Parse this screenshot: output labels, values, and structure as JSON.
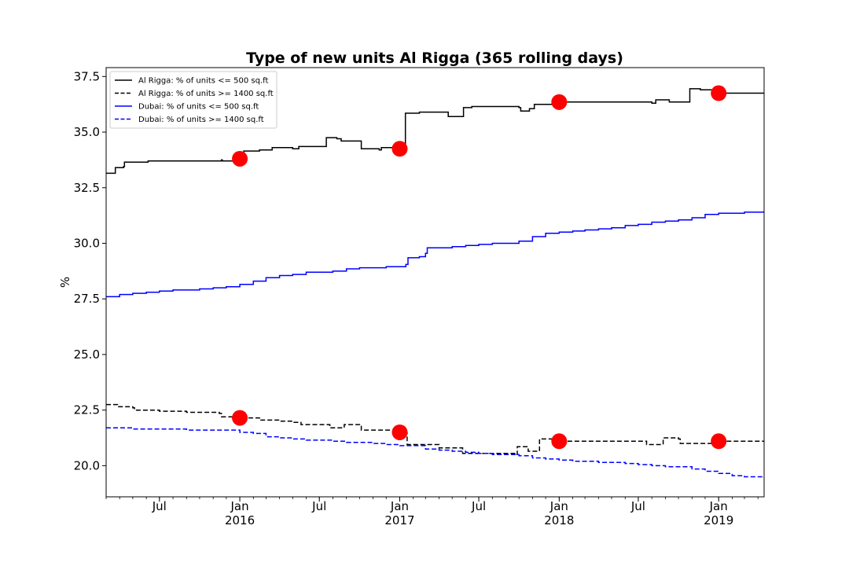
{
  "chart_data": {
    "type": "line",
    "title": "Type of new units Al Rigga (365 rolling days)",
    "xlabel": "",
    "ylabel": "%",
    "xlim": [
      "2015-03-01",
      "2019-04-15"
    ],
    "ylim": [
      18.6,
      37.9
    ],
    "y_ticks": [
      20.0,
      22.5,
      25.0,
      27.5,
      30.0,
      32.5,
      35.0,
      37.5
    ],
    "y_tick_labels": [
      "20.0",
      "22.5",
      "25.0",
      "27.5",
      "30.0",
      "32.5",
      "35.0",
      "37.5"
    ],
    "x_major_ticks": [
      {
        "date": "2015-07-01",
        "label": "Jul",
        "year": ""
      },
      {
        "date": "2016-01-01",
        "label": "Jan",
        "year": "2016"
      },
      {
        "date": "2016-07-01",
        "label": "Jul",
        "year": ""
      },
      {
        "date": "2017-01-01",
        "label": "Jan",
        "year": "2017"
      },
      {
        "date": "2017-07-01",
        "label": "Jul",
        "year": ""
      },
      {
        "date": "2018-01-01",
        "label": "Jan",
        "year": "2018"
      },
      {
        "date": "2018-07-01",
        "label": "Jul",
        "year": ""
      },
      {
        "date": "2019-01-01",
        "label": "Jan",
        "year": "2019"
      }
    ],
    "grid": false,
    "legend_position": "top-left",
    "series": [
      {
        "name": "Al Rigga: % of units <= 500 sq.ft",
        "color": "#000000",
        "style": "solid",
        "points": [
          [
            "2015-03-01",
            33.15
          ],
          [
            "2015-03-20",
            33.15
          ],
          [
            "2015-03-22",
            33.4
          ],
          [
            "2015-04-10",
            33.45
          ],
          [
            "2015-04-12",
            33.65
          ],
          [
            "2015-06-01",
            33.65
          ],
          [
            "2015-06-05",
            33.7
          ],
          [
            "2015-08-01",
            33.7
          ],
          [
            "2015-11-20",
            33.75
          ],
          [
            "2015-11-22",
            33.7
          ],
          [
            "2015-12-20",
            33.75
          ],
          [
            "2016-01-06",
            33.8
          ],
          [
            "2016-01-10",
            34.15
          ],
          [
            "2016-02-15",
            34.2
          ],
          [
            "2016-03-15",
            34.3
          ],
          [
            "2016-05-01",
            34.25
          ],
          [
            "2016-05-15",
            34.35
          ],
          [
            "2016-07-15",
            34.35
          ],
          [
            "2016-07-17",
            34.75
          ],
          [
            "2016-08-10",
            34.7
          ],
          [
            "2016-08-20",
            34.6
          ],
          [
            "2016-10-01",
            34.6
          ],
          [
            "2016-10-05",
            34.25
          ],
          [
            "2016-11-15",
            34.2
          ],
          [
            "2016-11-20",
            34.3
          ],
          [
            "2017-01-01",
            34.25
          ],
          [
            "2017-01-12",
            34.25
          ],
          [
            "2017-01-14",
            35.85
          ],
          [
            "2017-02-15",
            35.9
          ],
          [
            "2017-04-20",
            35.9
          ],
          [
            "2017-04-22",
            35.7
          ],
          [
            "2017-05-25",
            35.7
          ],
          [
            "2017-05-27",
            36.1
          ],
          [
            "2017-06-15",
            36.15
          ],
          [
            "2017-10-01",
            36.1
          ],
          [
            "2017-10-05",
            35.95
          ],
          [
            "2017-10-25",
            36.05
          ],
          [
            "2017-11-05",
            36.25
          ],
          [
            "2018-01-01",
            36.35
          ],
          [
            "2018-02-01",
            36.35
          ],
          [
            "2018-08-01",
            36.3
          ],
          [
            "2018-08-10",
            36.45
          ],
          [
            "2018-09-10",
            36.35
          ],
          [
            "2018-10-25",
            36.35
          ],
          [
            "2018-10-27",
            36.95
          ],
          [
            "2018-11-20",
            36.9
          ],
          [
            "2019-01-01",
            36.75
          ],
          [
            "2019-02-15",
            36.75
          ],
          [
            "2019-04-15",
            36.75
          ]
        ]
      },
      {
        "name": "Al Rigga: % of units >= 1400 sq.ft",
        "color": "#000000",
        "style": "dashed",
        "points": [
          [
            "2015-03-01",
            22.75
          ],
          [
            "2015-03-25",
            22.75
          ],
          [
            "2015-03-27",
            22.65
          ],
          [
            "2015-05-01",
            22.6
          ],
          [
            "2015-05-05",
            22.5
          ],
          [
            "2015-07-01",
            22.45
          ],
          [
            "2015-09-01",
            22.4
          ],
          [
            "2015-11-15",
            22.35
          ],
          [
            "2015-11-20",
            22.2
          ],
          [
            "2016-01-10",
            22.15
          ],
          [
            "2016-02-15",
            22.05
          ],
          [
            "2016-04-01",
            22.0
          ],
          [
            "2016-05-01",
            21.95
          ],
          [
            "2016-05-20",
            21.85
          ],
          [
            "2016-07-20",
            21.85
          ],
          [
            "2016-07-25",
            21.7
          ],
          [
            "2016-08-25",
            21.7
          ],
          [
            "2016-08-27",
            21.85
          ],
          [
            "2016-10-01",
            21.8
          ],
          [
            "2016-10-05",
            21.6
          ],
          [
            "2016-12-01",
            21.6
          ],
          [
            "2016-12-20",
            21.55
          ],
          [
            "2017-01-15",
            21.5
          ],
          [
            "2017-01-18",
            20.95
          ],
          [
            "2017-03-20",
            20.95
          ],
          [
            "2017-04-01",
            20.8
          ],
          [
            "2017-05-15",
            20.8
          ],
          [
            "2017-05-25",
            20.55
          ],
          [
            "2017-07-01",
            20.55
          ],
          [
            "2017-09-25",
            20.5
          ],
          [
            "2017-09-27",
            20.85
          ],
          [
            "2017-10-20",
            20.85
          ],
          [
            "2017-10-22",
            20.65
          ],
          [
            "2017-11-15",
            20.65
          ],
          [
            "2017-11-17",
            21.2
          ],
          [
            "2017-12-20",
            21.2
          ],
          [
            "2018-01-01",
            21.1
          ],
          [
            "2018-07-15",
            21.1
          ],
          [
            "2018-07-20",
            20.95
          ],
          [
            "2018-08-25",
            20.95
          ],
          [
            "2018-08-27",
            21.25
          ],
          [
            "2018-10-01",
            21.2
          ],
          [
            "2018-10-05",
            21.0
          ],
          [
            "2019-01-01",
            21.05
          ],
          [
            "2019-01-10",
            21.1
          ],
          [
            "2019-04-15",
            21.1
          ]
        ]
      },
      {
        "name": "Dubai: % of units <= 500 sq.ft",
        "color": "#0000ff",
        "style": "solid",
        "points": [
          [
            "2015-03-01",
            27.6
          ],
          [
            "2015-04-01",
            27.7
          ],
          [
            "2015-05-01",
            27.75
          ],
          [
            "2015-06-01",
            27.8
          ],
          [
            "2015-07-01",
            27.85
          ],
          [
            "2015-08-01",
            27.9
          ],
          [
            "2015-09-01",
            27.9
          ],
          [
            "2015-10-01",
            27.95
          ],
          [
            "2015-11-01",
            28.0
          ],
          [
            "2015-12-01",
            28.05
          ],
          [
            "2016-01-01",
            28.15
          ],
          [
            "2016-02-01",
            28.3
          ],
          [
            "2016-03-01",
            28.45
          ],
          [
            "2016-04-01",
            28.55
          ],
          [
            "2016-05-01",
            28.6
          ],
          [
            "2016-06-01",
            28.7
          ],
          [
            "2016-07-01",
            28.7
          ],
          [
            "2016-08-01",
            28.75
          ],
          [
            "2016-09-01",
            28.85
          ],
          [
            "2016-10-01",
            28.9
          ],
          [
            "2016-11-01",
            28.9
          ],
          [
            "2016-12-01",
            28.95
          ],
          [
            "2017-01-01",
            28.95
          ],
          [
            "2017-01-15",
            29.05
          ],
          [
            "2017-01-20",
            29.35
          ],
          [
            "2017-02-15",
            29.4
          ],
          [
            "2017-03-01",
            29.55
          ],
          [
            "2017-03-05",
            29.8
          ],
          [
            "2017-04-01",
            29.8
          ],
          [
            "2017-05-01",
            29.85
          ],
          [
            "2017-06-01",
            29.9
          ],
          [
            "2017-07-01",
            29.95
          ],
          [
            "2017-08-01",
            30.0
          ],
          [
            "2017-09-01",
            30.0
          ],
          [
            "2017-10-01",
            30.1
          ],
          [
            "2017-11-01",
            30.3
          ],
          [
            "2017-12-01",
            30.45
          ],
          [
            "2018-01-01",
            30.5
          ],
          [
            "2018-02-01",
            30.55
          ],
          [
            "2018-03-01",
            30.6
          ],
          [
            "2018-04-01",
            30.65
          ],
          [
            "2018-05-01",
            30.7
          ],
          [
            "2018-06-01",
            30.8
          ],
          [
            "2018-07-01",
            30.85
          ],
          [
            "2018-08-01",
            30.95
          ],
          [
            "2018-09-01",
            31.0
          ],
          [
            "2018-10-01",
            31.05
          ],
          [
            "2018-11-01",
            31.15
          ],
          [
            "2018-12-01",
            31.3
          ],
          [
            "2019-01-01",
            31.35
          ],
          [
            "2019-02-01",
            31.35
          ],
          [
            "2019-03-01",
            31.4
          ],
          [
            "2019-04-15",
            31.45
          ]
        ]
      },
      {
        "name": "Dubai: % of units >= 1400 sq.ft",
        "color": "#0000ff",
        "style": "dashed",
        "points": [
          [
            "2015-03-01",
            21.7
          ],
          [
            "2015-05-01",
            21.65
          ],
          [
            "2015-07-01",
            21.65
          ],
          [
            "2015-09-01",
            21.6
          ],
          [
            "2015-11-01",
            21.6
          ],
          [
            "2016-01-01",
            21.5
          ],
          [
            "2016-02-01",
            21.45
          ],
          [
            "2016-03-01",
            21.3
          ],
          [
            "2016-04-01",
            21.25
          ],
          [
            "2016-05-01",
            21.2
          ],
          [
            "2016-06-01",
            21.15
          ],
          [
            "2016-07-01",
            21.15
          ],
          [
            "2016-08-01",
            21.1
          ],
          [
            "2016-09-01",
            21.05
          ],
          [
            "2016-10-01",
            21.05
          ],
          [
            "2016-11-01",
            21.0
          ],
          [
            "2016-12-01",
            20.95
          ],
          [
            "2017-01-01",
            20.9
          ],
          [
            "2017-02-01",
            20.9
          ],
          [
            "2017-03-01",
            20.75
          ],
          [
            "2017-04-01",
            20.7
          ],
          [
            "2017-05-01",
            20.65
          ],
          [
            "2017-06-01",
            20.6
          ],
          [
            "2017-07-01",
            20.55
          ],
          [
            "2017-08-01",
            20.5
          ],
          [
            "2017-09-01",
            20.5
          ],
          [
            "2017-10-01",
            20.45
          ],
          [
            "2017-11-01",
            20.35
          ],
          [
            "2017-12-01",
            20.3
          ],
          [
            "2018-01-01",
            20.25
          ],
          [
            "2018-02-01",
            20.2
          ],
          [
            "2018-03-01",
            20.2
          ],
          [
            "2018-04-01",
            20.15
          ],
          [
            "2018-05-01",
            20.15
          ],
          [
            "2018-06-01",
            20.1
          ],
          [
            "2018-07-01",
            20.05
          ],
          [
            "2018-08-01",
            20.0
          ],
          [
            "2018-09-01",
            19.95
          ],
          [
            "2018-10-01",
            19.95
          ],
          [
            "2018-11-01",
            19.85
          ],
          [
            "2018-12-01",
            19.75
          ],
          [
            "2019-01-01",
            19.65
          ],
          [
            "2019-02-01",
            19.55
          ],
          [
            "2019-03-01",
            19.5
          ],
          [
            "2019-04-15",
            19.45
          ]
        ]
      }
    ],
    "markers": {
      "color": "#ff0000",
      "points": [
        [
          "2016-01-01",
          33.8
        ],
        [
          "2017-01-01",
          34.25
        ],
        [
          "2018-01-01",
          36.35
        ],
        [
          "2019-01-01",
          36.75
        ],
        [
          "2016-01-01",
          22.15
        ],
        [
          "2017-01-01",
          21.5
        ],
        [
          "2018-01-01",
          21.1
        ],
        [
          "2019-01-01",
          21.1
        ]
      ]
    }
  }
}
